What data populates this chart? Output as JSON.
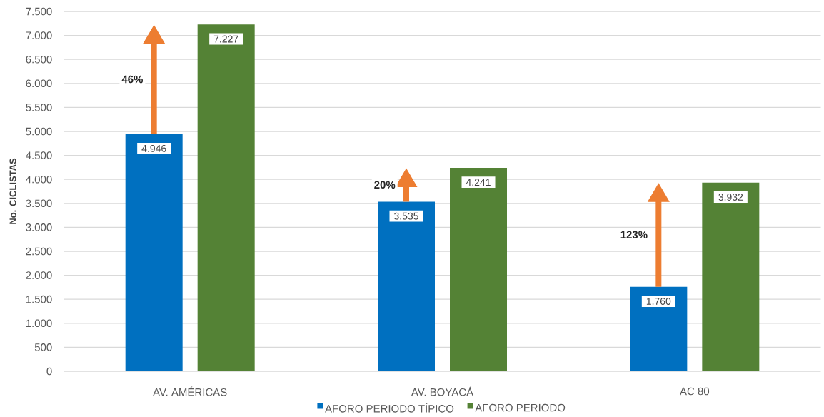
{
  "chart_data": {
    "type": "bar",
    "categories": [
      "AV. AMÉRICAS",
      "AV. BOYACÁ",
      "AC 80"
    ],
    "series": [
      {
        "name": "AFORO PERIODO TÍPICO",
        "color": "#0070c0",
        "values": [
          4946,
          3535,
          1760
        ],
        "value_labels": [
          "4.946",
          "3.535",
          "1.760"
        ]
      },
      {
        "name": "AFORO PERIODO",
        "color": "#548235",
        "values": [
          7227,
          4241,
          3932
        ],
        "value_labels": [
          "7.227",
          "4.241",
          "3.932"
        ]
      }
    ],
    "ylabel": "No. CICLISTAS",
    "ylim": [
      0,
      7500
    ],
    "yticks": [
      0,
      500,
      {
        "value": 1000,
        "label": "1.000"
      },
      {
        "value": 1500,
        "label": "1.500"
      },
      {
        "value": 2000,
        "label": "2.000"
      },
      {
        "value": 2500,
        "label": "2.500"
      },
      {
        "value": 3000,
        "label": "3.000"
      },
      {
        "value": 3500,
        "label": "3.500"
      },
      {
        "value": 4000,
        "label": "4.000"
      },
      {
        "value": 4500,
        "label": "4.500"
      },
      {
        "value": 5000,
        "label": "5.000"
      },
      {
        "value": 5500,
        "label": "5.500"
      },
      {
        "value": 6000,
        "label": "6.000"
      },
      {
        "value": 6500,
        "label": "6.500"
      },
      {
        "value": 7000,
        "label": "7.000"
      },
      {
        "value": 7500,
        "label": "7.500"
      }
    ],
    "grid": "y",
    "legend": "bottom",
    "annotations": [
      "46%",
      "20%",
      "123%"
    ]
  }
}
